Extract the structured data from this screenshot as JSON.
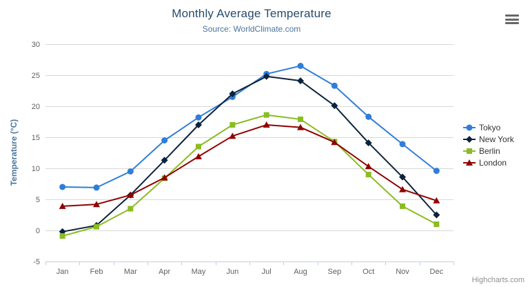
{
  "chart_data": {
    "type": "line",
    "title": "Monthly Average Temperature",
    "subtitle": "Source: WorldClimate.com",
    "xlabel": "",
    "ylabel": "Temperature (°C)",
    "categories": [
      "Jan",
      "Feb",
      "Mar",
      "Apr",
      "May",
      "Jun",
      "Jul",
      "Aug",
      "Sep",
      "Oct",
      "Nov",
      "Dec"
    ],
    "ylim": [
      -5,
      30
    ],
    "ytick_step": 5,
    "grid": true,
    "legend_position": "right",
    "series": [
      {
        "name": "Tokyo",
        "color": "#2f7ed8",
        "marker": "circle",
        "values": [
          7.0,
          6.9,
          9.5,
          14.5,
          18.2,
          21.5,
          25.2,
          26.5,
          23.3,
          18.3,
          13.9,
          9.6
        ]
      },
      {
        "name": "New York",
        "color": "#0d233a",
        "marker": "diamond",
        "values": [
          -0.2,
          0.8,
          5.7,
          11.3,
          17.0,
          22.0,
          24.8,
          24.1,
          20.1,
          14.1,
          8.6,
          2.5
        ]
      },
      {
        "name": "Berlin",
        "color": "#8bbc21",
        "marker": "square",
        "values": [
          -0.9,
          0.6,
          3.5,
          8.4,
          13.5,
          17.0,
          18.6,
          17.9,
          14.3,
          9.0,
          3.9,
          1.0
        ]
      },
      {
        "name": "London",
        "color": "#910000",
        "marker": "triangle",
        "values": [
          3.9,
          4.2,
          5.7,
          8.5,
          11.9,
          15.2,
          17.0,
          16.6,
          14.2,
          10.3,
          6.6,
          4.8
        ]
      }
    ],
    "axis_colors": {
      "grid": "#d8d8d8",
      "axis_line": "#c0d0e0",
      "tick_label": "#606060"
    }
  },
  "credits": {
    "text": "Highcharts.com"
  }
}
